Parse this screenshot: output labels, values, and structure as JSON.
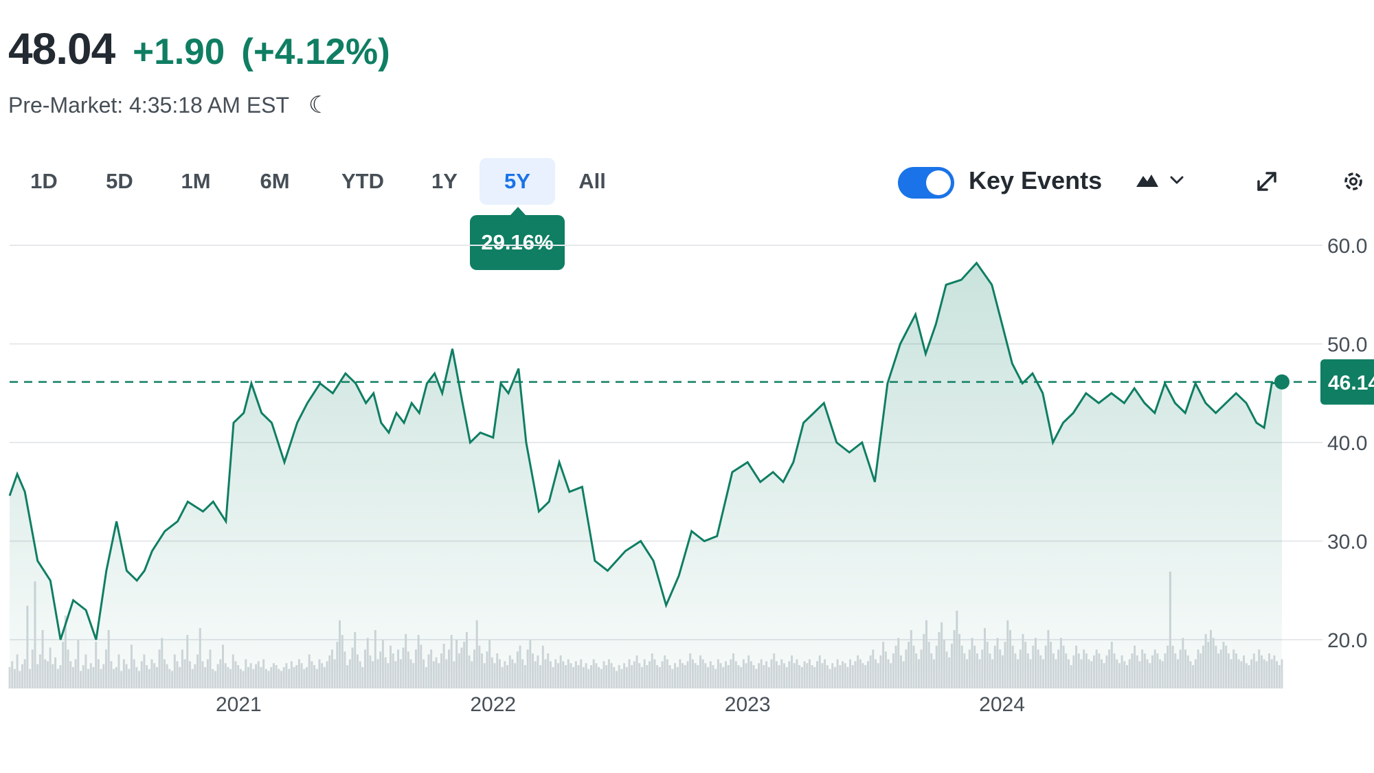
{
  "quote": {
    "price": "48.04",
    "change": "+1.90",
    "change_pct": "(+4.12%)",
    "session": "Pre-Market: 4:35:18 AM EST",
    "session_icon": "moon-icon"
  },
  "range_tabs": [
    "1D",
    "5D",
    "1M",
    "6M",
    "YTD",
    "1Y",
    "5Y",
    "All"
  ],
  "active_tab": "5Y",
  "range_change_badge": "29.16%",
  "key_events": {
    "label": "Key Events",
    "enabled": true
  },
  "toolbar_icons": [
    "mountain-chart-icon",
    "chevron-down-icon",
    "expand-icon",
    "gear-icon"
  ],
  "colors": {
    "line": "#0f7e63",
    "positive": "#0f7e63",
    "active_tab": "#1a73e8",
    "toggle": "#1a73e8"
  },
  "chart_data": {
    "type": "area",
    "y_ticks": [
      "60.0",
      "50.0",
      "40.0",
      "30.0",
      "20.0"
    ],
    "x_ticks": [
      "2021",
      "2022",
      "2023",
      "2024"
    ],
    "ylim": [
      20,
      60
    ],
    "xlim": [
      2020.1,
      2025.1
    ],
    "reference_line": {
      "value": 46.14,
      "label": "46.14",
      "style": "dashed"
    },
    "grid": true,
    "series": [
      {
        "x": [
          2020.1,
          2020.13,
          2020.16,
          2020.21,
          2020.26,
          2020.3,
          2020.35,
          2020.4,
          2020.44,
          2020.48,
          2020.52,
          2020.56,
          2020.6,
          2020.63,
          2020.66,
          2020.71,
          2020.76,
          2020.8,
          2020.86,
          2020.9,
          2020.95,
          2020.98,
          2021.02,
          2021.05,
          2021.09,
          2021.13,
          2021.18,
          2021.23,
          2021.27,
          2021.32,
          2021.37,
          2021.42,
          2021.46,
          2021.5,
          2021.53,
          2021.56,
          2021.59,
          2021.62,
          2021.65,
          2021.68,
          2021.71,
          2021.74,
          2021.77,
          2021.8,
          2021.84,
          2021.88,
          2021.91,
          2021.95,
          2022.0,
          2022.03,
          2022.06,
          2022.1,
          2022.13,
          2022.18,
          2022.22,
          2022.26,
          2022.3,
          2022.35,
          2022.4,
          2022.45,
          2022.52,
          2022.58,
          2022.63,
          2022.68,
          2022.73,
          2022.78,
          2022.83,
          2022.88,
          2022.94,
          2023.0,
          2023.05,
          2023.1,
          2023.14,
          2023.18,
          2023.22,
          2023.26,
          2023.3,
          2023.35,
          2023.4,
          2023.45,
          2023.5,
          2023.55,
          2023.6,
          2023.66,
          2023.7,
          2023.74,
          2023.78,
          2023.84,
          2023.9,
          2023.96,
          2024.0,
          2024.04,
          2024.08,
          2024.12,
          2024.16,
          2024.2,
          2024.24,
          2024.28,
          2024.33,
          2024.38,
          2024.43,
          2024.48,
          2024.52,
          2024.56,
          2024.6,
          2024.64,
          2024.68,
          2024.72,
          2024.76,
          2024.8,
          2024.84,
          2024.88,
          2024.92,
          2024.96,
          2025.0,
          2025.03,
          2025.06,
          2025.1
        ],
        "values": [
          34.6,
          36.8,
          35.0,
          28.0,
          26.0,
          20.0,
          24.0,
          23.0,
          20.0,
          27.0,
          32.0,
          27.0,
          26.0,
          27.0,
          29.0,
          31.0,
          32.0,
          34.0,
          33.0,
          34.0,
          32.0,
          42.0,
          43.0,
          46.0,
          43.0,
          42.0,
          38.0,
          42.0,
          44.0,
          46.0,
          45.0,
          47.0,
          46.0,
          44.0,
          45.0,
          42.0,
          41.0,
          43.0,
          42.0,
          44.0,
          43.0,
          46.0,
          47.0,
          45.0,
          49.5,
          44.0,
          40.0,
          41.0,
          40.5,
          46.0,
          45.0,
          47.5,
          40.0,
          33.0,
          34.0,
          38.0,
          35.0,
          35.5,
          28.0,
          27.0,
          29.0,
          30.0,
          28.0,
          23.5,
          26.5,
          31.0,
          30.0,
          30.5,
          37.0,
          38.0,
          36.0,
          37.0,
          36.0,
          38.0,
          42.0,
          43.0,
          44.0,
          40.0,
          39.0,
          40.0,
          36.0,
          46.0,
          50.0,
          53.0,
          49.0,
          52.0,
          56.0,
          56.5,
          58.2,
          56.0,
          52.0,
          48.0,
          46.0,
          47.0,
          45.0,
          40.0,
          42.0,
          43.0,
          45.0,
          44.0,
          45.0,
          44.0,
          45.5,
          44.0,
          43.0,
          46.0,
          44.0,
          43.0,
          46.0,
          44.0,
          43.0,
          44.0,
          45.0,
          44.0,
          42.0,
          41.5,
          46.0,
          46.14
        ]
      }
    ],
    "volume": {
      "x_start": 2020.1,
      "x_end": 2025.1,
      "values": [
        22,
        28,
        20,
        35,
        18,
        25,
        30,
        85,
        20,
        40,
        110,
        25,
        35,
        60,
        30,
        28,
        42,
        25,
        32,
        20,
        24,
        48,
        75,
        40,
        28,
        22,
        30,
        50,
        18,
        24,
        35,
        20,
        26,
        22,
        48,
        30,
        20,
        25,
        40,
        60,
        28,
        20,
        22,
        35,
        18,
        30,
        25,
        20,
        45,
        30,
        22,
        18,
        28,
        35,
        24,
        20,
        30,
        26,
        22,
        40,
        52,
        30,
        25,
        20,
        18,
        35,
        28,
        22,
        40,
        30,
        55,
        28,
        20,
        25,
        35,
        62,
        28,
        22,
        30,
        40,
        20,
        18,
        25,
        30,
        45,
        26,
        22,
        20,
        35,
        28,
        24,
        20,
        18,
        30,
        22,
        26,
        20,
        25,
        28,
        22,
        30,
        20,
        18,
        22,
        26,
        24,
        20,
        18,
        22,
        26,
        20,
        28,
        22,
        24,
        30,
        26,
        20,
        22,
        35,
        28,
        24,
        20,
        30,
        26,
        22,
        28,
        34,
        40,
        30,
        48,
        70,
        55,
        38,
        24,
        30,
        42,
        58,
        35,
        28,
        22,
        40,
        52,
        34,
        28,
        60,
        30,
        38,
        50,
        32,
        26,
        44,
        36,
        28,
        40,
        30,
        42,
        56,
        38,
        30,
        26,
        40,
        55,
        45,
        30,
        22,
        35,
        40,
        28,
        32,
        26,
        36,
        46,
        30,
        40,
        55,
        28,
        50,
        36,
        42,
        48,
        58,
        34,
        28,
        40,
        70,
        44,
        36,
        26,
        38,
        50,
        32,
        26,
        36,
        30,
        22,
        28,
        24,
        34,
        30,
        26,
        38,
        44,
        30,
        24,
        40,
        50,
        36,
        28,
        34,
        24,
        44,
        30,
        36,
        28,
        22,
        30,
        26,
        34,
        28,
        24,
        30,
        26,
        22,
        28,
        24,
        30,
        22,
        26,
        20,
        24,
        30,
        26,
        22,
        20,
        28,
        24,
        30,
        26,
        22,
        18,
        24,
        20,
        26,
        22,
        30,
        24,
        28,
        34,
        26,
        22,
        30,
        24,
        28,
        36,
        30,
        24,
        22,
        28,
        34,
        30,
        24,
        20,
        26,
        22,
        30,
        26,
        24,
        28,
        36,
        30,
        26,
        24,
        34,
        30,
        26,
        22,
        28,
        24,
        20,
        30,
        26,
        22,
        28,
        24,
        30,
        36,
        28,
        24,
        22,
        30,
        26,
        34,
        28,
        24,
        20,
        26,
        30,
        24,
        28,
        22,
        30,
        36,
        28,
        24,
        30,
        26,
        22,
        28,
        34,
        26,
        30,
        24,
        22,
        28,
        26,
        30,
        24,
        22,
        28,
        34,
        26,
        30,
        24,
        20,
        26,
        22,
        30,
        24,
        28,
        26,
        22,
        30,
        24,
        28,
        34,
        30,
        26,
        24,
        28,
        34,
        40,
        30,
        26,
        34,
        48,
        38,
        30,
        26,
        36,
        44,
        52,
        34,
        28,
        40,
        48,
        60,
        44,
        36,
        30,
        40,
        56,
        70,
        48,
        36,
        30,
        44,
        58,
        68,
        50,
        38,
        32,
        46,
        60,
        80,
        56,
        44,
        36,
        30,
        40,
        52,
        44,
        36,
        30,
        40,
        62,
        48,
        36,
        30,
        44,
        52,
        40,
        34,
        48,
        70,
        60,
        44,
        36,
        30,
        40,
        56,
        48,
        36,
        30,
        44,
        52,
        40,
        34,
        30,
        44,
        60,
        48,
        36,
        30,
        40,
        52,
        44,
        36,
        30,
        24,
        34,
        44,
        36,
        30,
        40,
        36,
        30,
        28,
        34,
        40,
        36,
        30,
        26,
        34,
        40,
        48,
        36,
        30,
        26,
        34,
        28,
        24,
        30,
        36,
        44,
        34,
        28,
        40,
        36,
        30,
        26,
        34,
        40,
        36,
        30,
        28,
        36,
        44,
        120,
        44,
        36,
        30,
        40,
        52,
        40,
        34,
        28,
        24,
        30,
        40,
        36,
        44,
        56,
        48,
        60,
        52,
        44,
        36,
        40,
        48,
        44,
        36,
        30,
        40,
        36,
        30,
        28,
        34,
        26,
        24,
        30,
        36,
        28,
        40,
        34,
        30,
        28,
        36,
        30,
        34,
        28,
        24,
        30
      ]
    }
  }
}
